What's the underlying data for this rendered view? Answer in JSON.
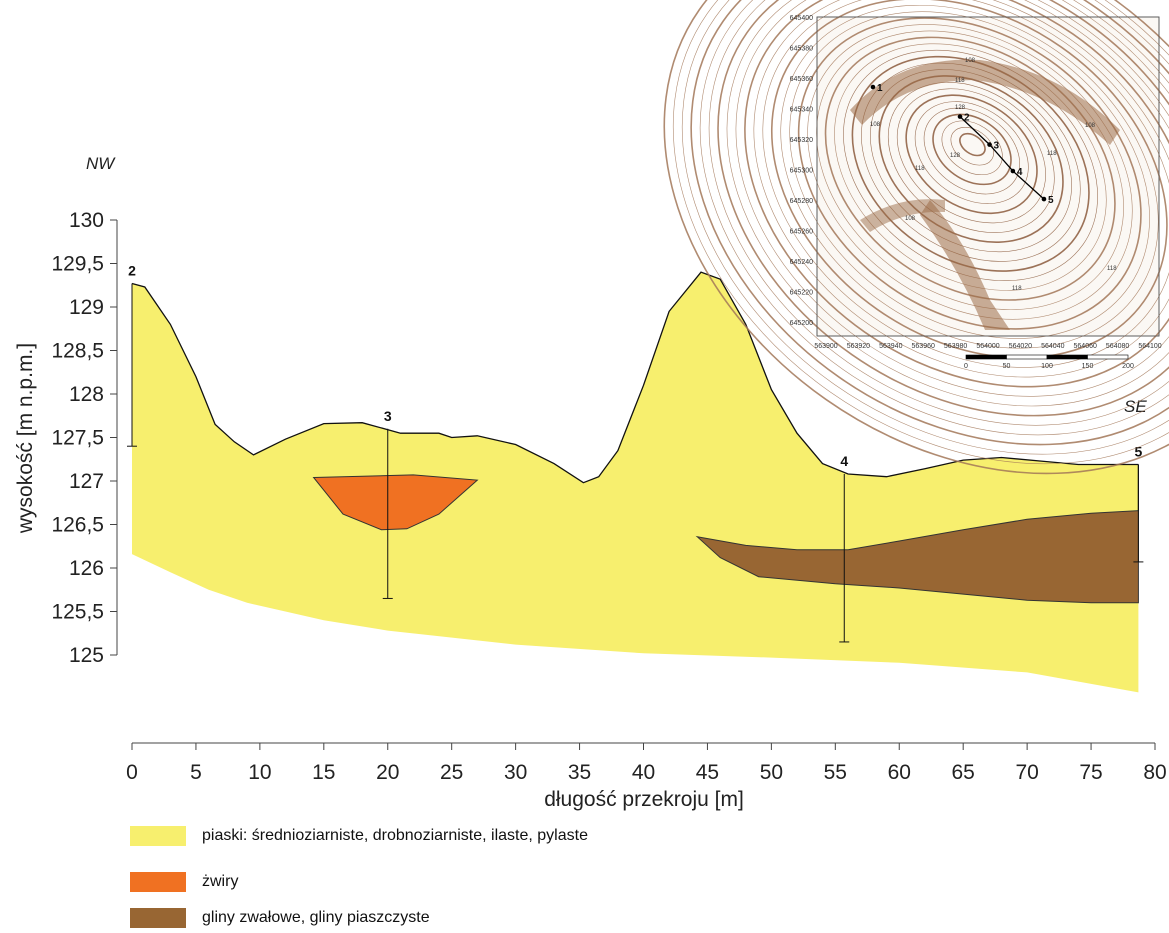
{
  "directions": {
    "left": "NW",
    "right": "SE"
  },
  "colors": {
    "sand": "#f7ef6e",
    "gravel": "#f07122",
    "till": "#986633",
    "contour": "#8b5a3c"
  },
  "chart_data": {
    "type": "area",
    "xlabel": "długość przekroju [m]",
    "ylabel": "wysokość [m n.p.m.]",
    "xlim": [
      0,
      80
    ],
    "ylim": [
      125,
      130
    ],
    "x_ticks": [
      "0",
      "5",
      "10",
      "15",
      "20",
      "25",
      "30",
      "35",
      "40",
      "45",
      "50",
      "55",
      "60",
      "65",
      "70",
      "75",
      "80"
    ],
    "y_ticks": [
      "125",
      "125,5",
      "126",
      "126,5",
      "127",
      "127,5",
      "128",
      "128,5",
      "129",
      "129,5",
      "130"
    ],
    "surface": [
      [
        0,
        129.27
      ],
      [
        1,
        129.23
      ],
      [
        3,
        128.8
      ],
      [
        5,
        128.2
      ],
      [
        6.5,
        127.65
      ],
      [
        8,
        127.45
      ],
      [
        9.5,
        127.3
      ],
      [
        12,
        127.48
      ],
      [
        15,
        127.66
      ],
      [
        18,
        127.67
      ],
      [
        21,
        127.55
      ],
      [
        24,
        127.55
      ],
      [
        25,
        127.5
      ],
      [
        27,
        127.52
      ],
      [
        30,
        127.42
      ],
      [
        33,
        127.2
      ],
      [
        35.3,
        126.98
      ],
      [
        36.5,
        127.05
      ],
      [
        38,
        127.35
      ],
      [
        40,
        128.1
      ],
      [
        42,
        128.95
      ],
      [
        44.5,
        129.4
      ],
      [
        46,
        129.32
      ],
      [
        48,
        128.8
      ],
      [
        50,
        128.05
      ],
      [
        52,
        127.55
      ],
      [
        54,
        127.2
      ],
      [
        56,
        127.08
      ],
      [
        59,
        127.05
      ],
      [
        62,
        127.14
      ],
      [
        65,
        127.24
      ],
      [
        68,
        127.27
      ],
      [
        71,
        127.23
      ],
      [
        74,
        127.19
      ],
      [
        78.7,
        127.19
      ]
    ],
    "sand_base": [
      [
        0,
        126.16
      ],
      [
        3,
        125.95
      ],
      [
        6,
        125.75
      ],
      [
        9,
        125.6
      ],
      [
        12,
        125.5
      ],
      [
        15,
        125.4
      ],
      [
        20,
        125.28
      ],
      [
        30,
        125.12
      ],
      [
        40,
        125.02
      ],
      [
        50,
        124.97
      ],
      [
        60,
        124.91
      ],
      [
        70,
        124.8
      ],
      [
        78.7,
        124.57
      ]
    ],
    "gravel_top": [
      [
        14.2,
        127.04
      ],
      [
        22,
        127.07
      ],
      [
        27,
        127.01
      ]
    ],
    "gravel_bottom": [
      [
        14.2,
        127.04
      ],
      [
        16.5,
        126.62
      ],
      [
        19.5,
        126.44
      ],
      [
        21.5,
        126.45
      ],
      [
        24,
        126.62
      ],
      [
        27,
        127.01
      ]
    ],
    "till_top": [
      [
        44.2,
        126.36
      ],
      [
        48,
        126.26
      ],
      [
        52,
        126.21
      ],
      [
        56,
        126.21
      ],
      [
        60,
        126.31
      ],
      [
        65,
        126.44
      ],
      [
        70,
        126.56
      ],
      [
        75,
        126.63
      ],
      [
        78.7,
        126.66
      ]
    ],
    "till_bottom": [
      [
        44.2,
        126.36
      ],
      [
        46,
        126.12
      ],
      [
        49,
        125.9
      ],
      [
        55,
        125.82
      ],
      [
        60,
        125.77
      ],
      [
        65,
        125.7
      ],
      [
        70,
        125.63
      ],
      [
        75,
        125.6
      ],
      [
        78.7,
        125.6
      ]
    ],
    "boreholes": [
      {
        "label": "2",
        "x": 0,
        "top": 129.27,
        "bottom": 127.4
      },
      {
        "label": "3",
        "x": 20,
        "top": 127.6,
        "bottom": 125.65
      },
      {
        "label": "4",
        "x": 55.7,
        "top": 127.08,
        "bottom": 125.15
      },
      {
        "label": "5",
        "x": 78.7,
        "top": 127.19,
        "bottom": 126.07
      }
    ]
  },
  "inset_map": {
    "y_ticks": [
      "645400",
      "645380",
      "645360",
      "645340",
      "645320",
      "645300",
      "645280",
      "645260",
      "645240",
      "645220",
      "645200"
    ],
    "x_ticks": [
      "563900",
      "563920",
      "563940",
      "563960",
      "563980",
      "564000",
      "564020",
      "564040",
      "564060",
      "564080",
      "564100"
    ],
    "scale_ticks": [
      "0",
      "50",
      "100",
      "150",
      "200"
    ],
    "contour_labels": [
      "108",
      "118",
      "128",
      "108",
      "118",
      "128",
      "108",
      "118",
      "108",
      "118",
      "118"
    ],
    "points": [
      {
        "label": "1",
        "e": 563926,
        "n": 645355
      },
      {
        "label": "2",
        "e": 563982,
        "n": 645336
      },
      {
        "label": "3",
        "e": 564001,
        "n": 645318
      },
      {
        "label": "4",
        "e": 564016,
        "n": 645301
      },
      {
        "label": "5",
        "e": 564036,
        "n": 645283
      }
    ]
  },
  "legend": [
    {
      "label": "piaski: średnioziarniste, drobnoziarniste, ilaste, pylaste"
    },
    {
      "label": "żwiry"
    },
    {
      "label": "gliny zwałowe, gliny piaszczyste"
    }
  ]
}
